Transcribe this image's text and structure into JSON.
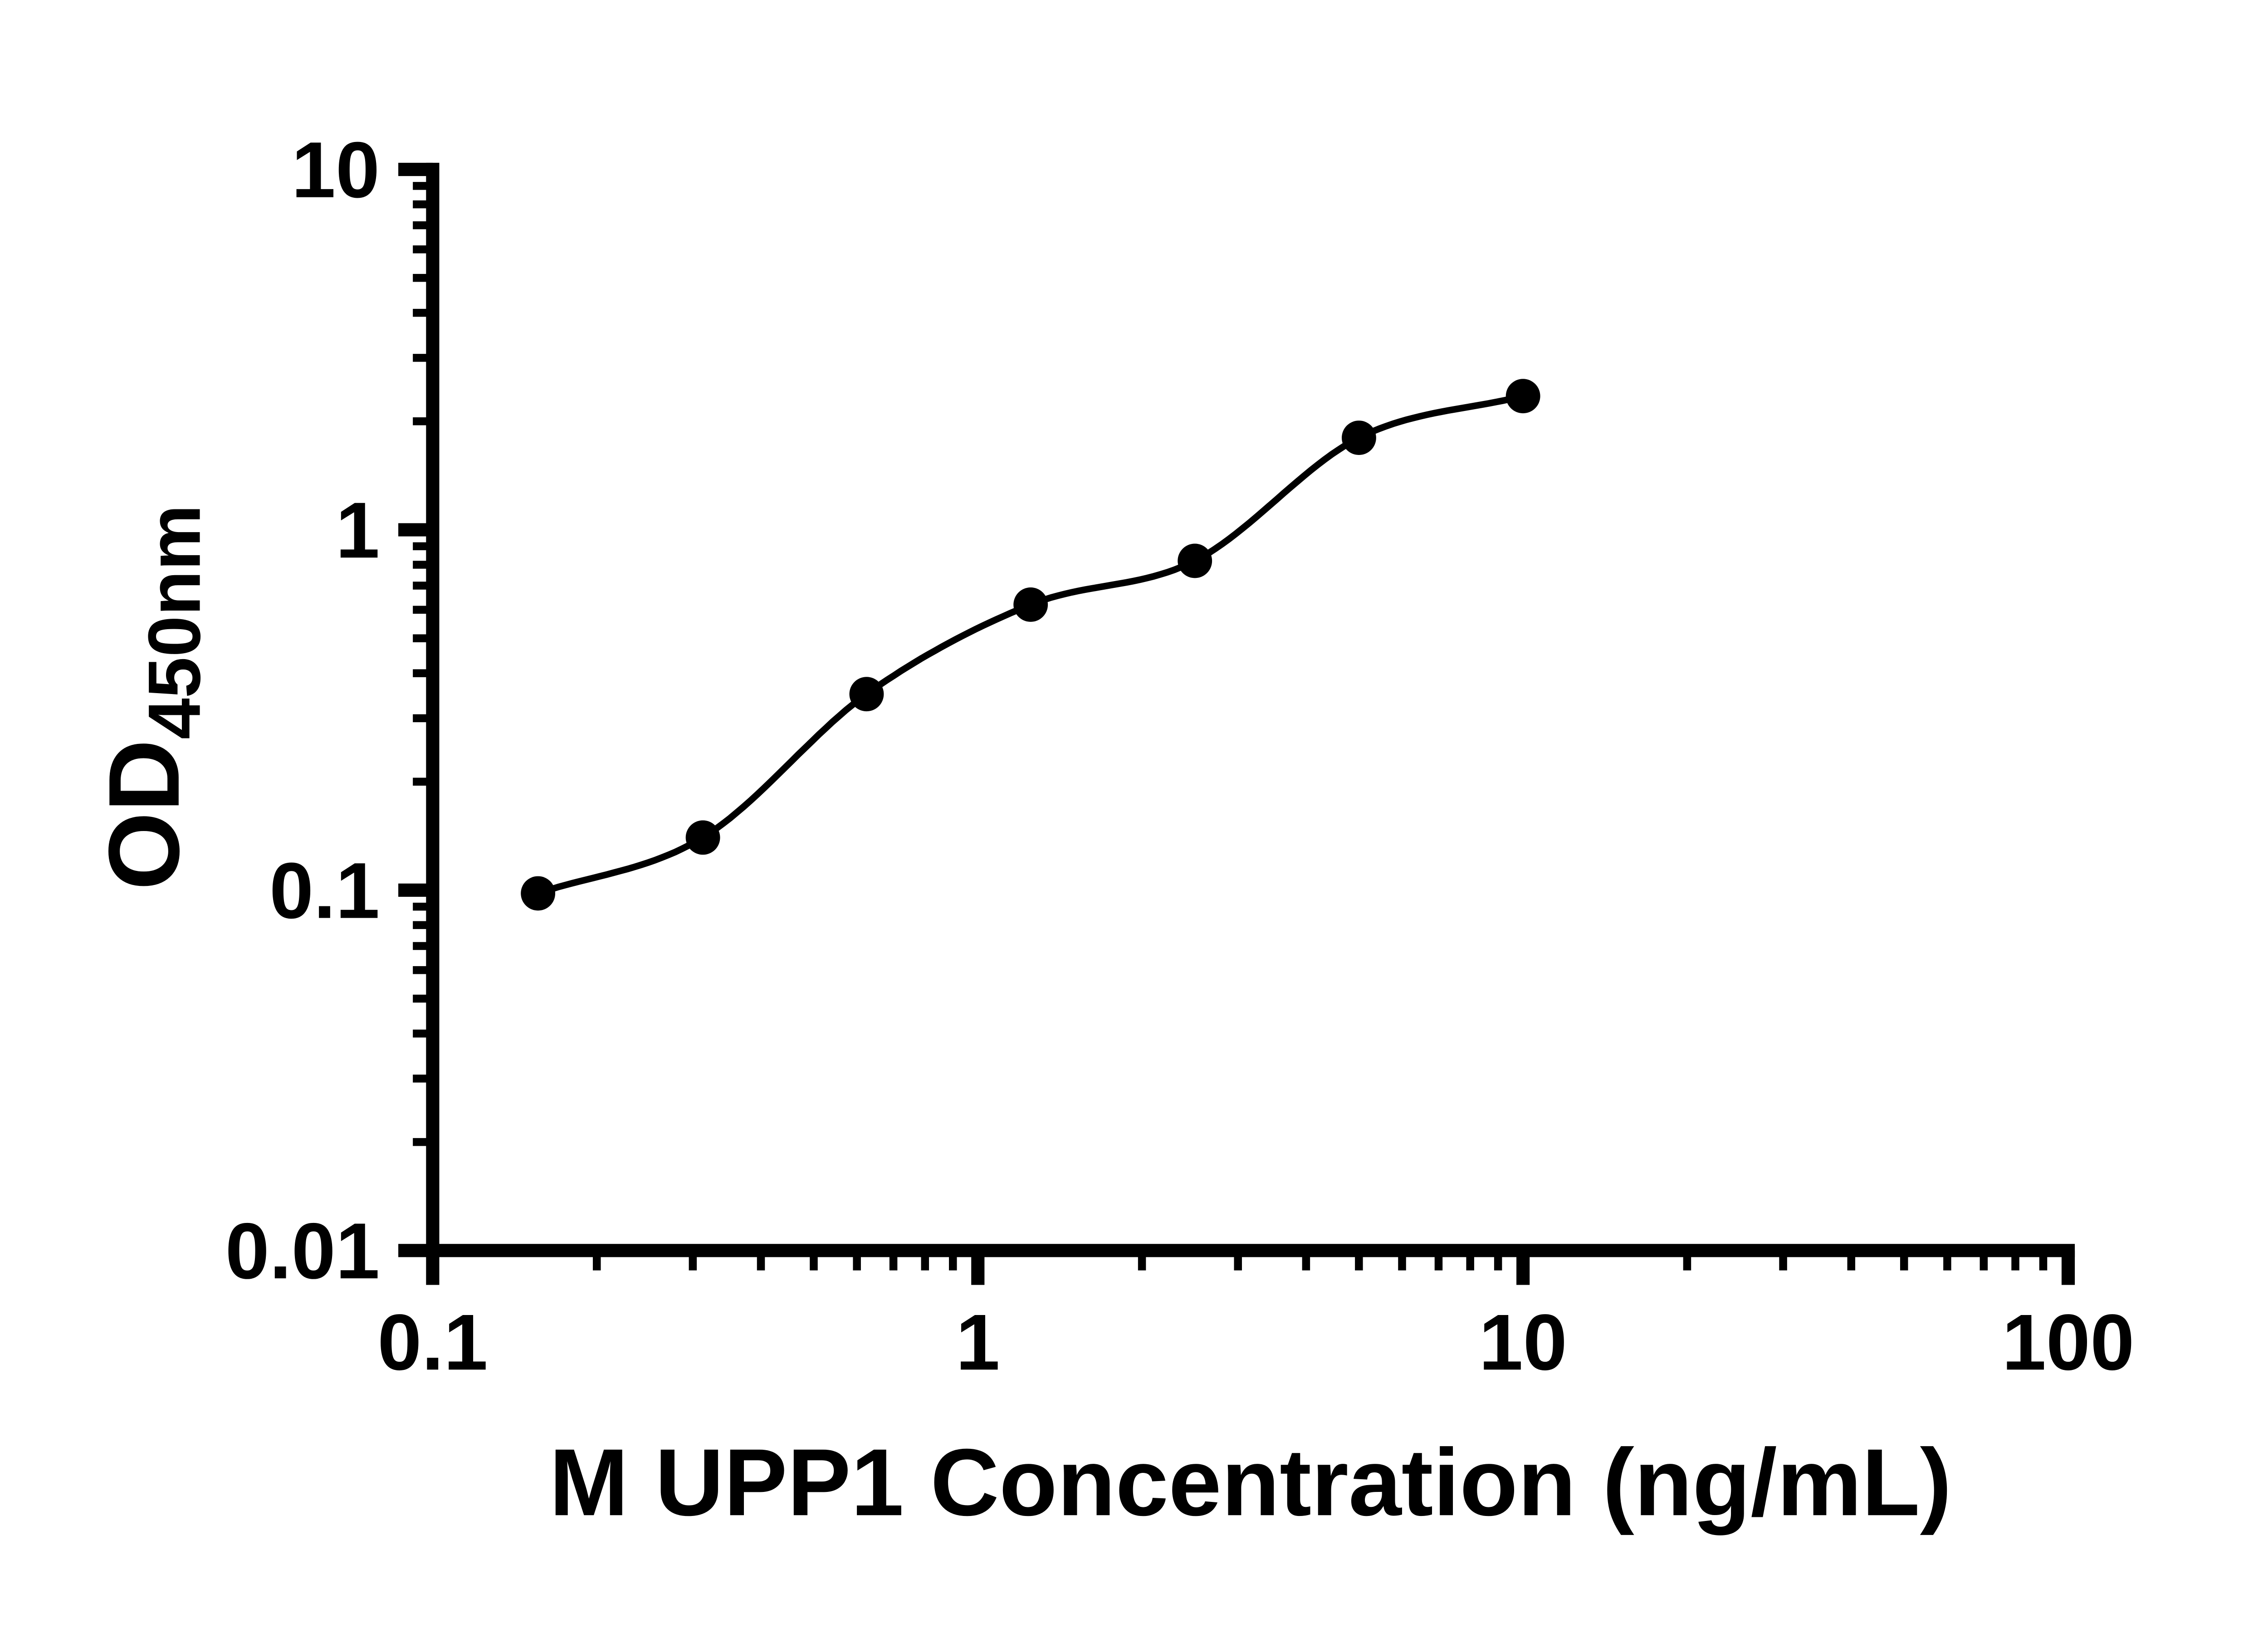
{
  "page": {
    "background_color": "#ffffff"
  },
  "chart_data": {
    "type": "scatter",
    "subtype": "standard-curve-with-smooth-fit",
    "title": "",
    "xlabel": "M UPP1 Concentration (ng/mL)",
    "ylabel_base": "OD",
    "ylabel_sub": "450nm",
    "x_scale": "log10",
    "y_scale": "log10",
    "xlim": [
      0.1,
      100
    ],
    "ylim": [
      0.01,
      10
    ],
    "x_major_ticks": [
      0.1,
      1,
      10,
      100
    ],
    "x_major_tick_labels": [
      "0.1",
      "1",
      "10",
      "100"
    ],
    "y_major_ticks": [
      10,
      1,
      0.1,
      0.01
    ],
    "y_major_tick_labels": [
      "10",
      "1",
      "0.1",
      "0.01"
    ],
    "minor_ticks": "log 2-9 per decade on both axes",
    "grid": false,
    "legend": "none",
    "series": [
      {
        "marker": "filled-circle",
        "color": "#000000",
        "has_fit_curve": true,
        "x": [
          0.156,
          0.313,
          0.625,
          1.25,
          2.5,
          5,
          10
        ],
        "y": [
          0.098,
          0.14,
          0.35,
          0.62,
          0.82,
          1.8,
          2.35
        ]
      }
    ],
    "colors": {
      "axis": "#000000",
      "marker": "#000000",
      "curve": "#000000",
      "background": "#ffffff"
    }
  }
}
